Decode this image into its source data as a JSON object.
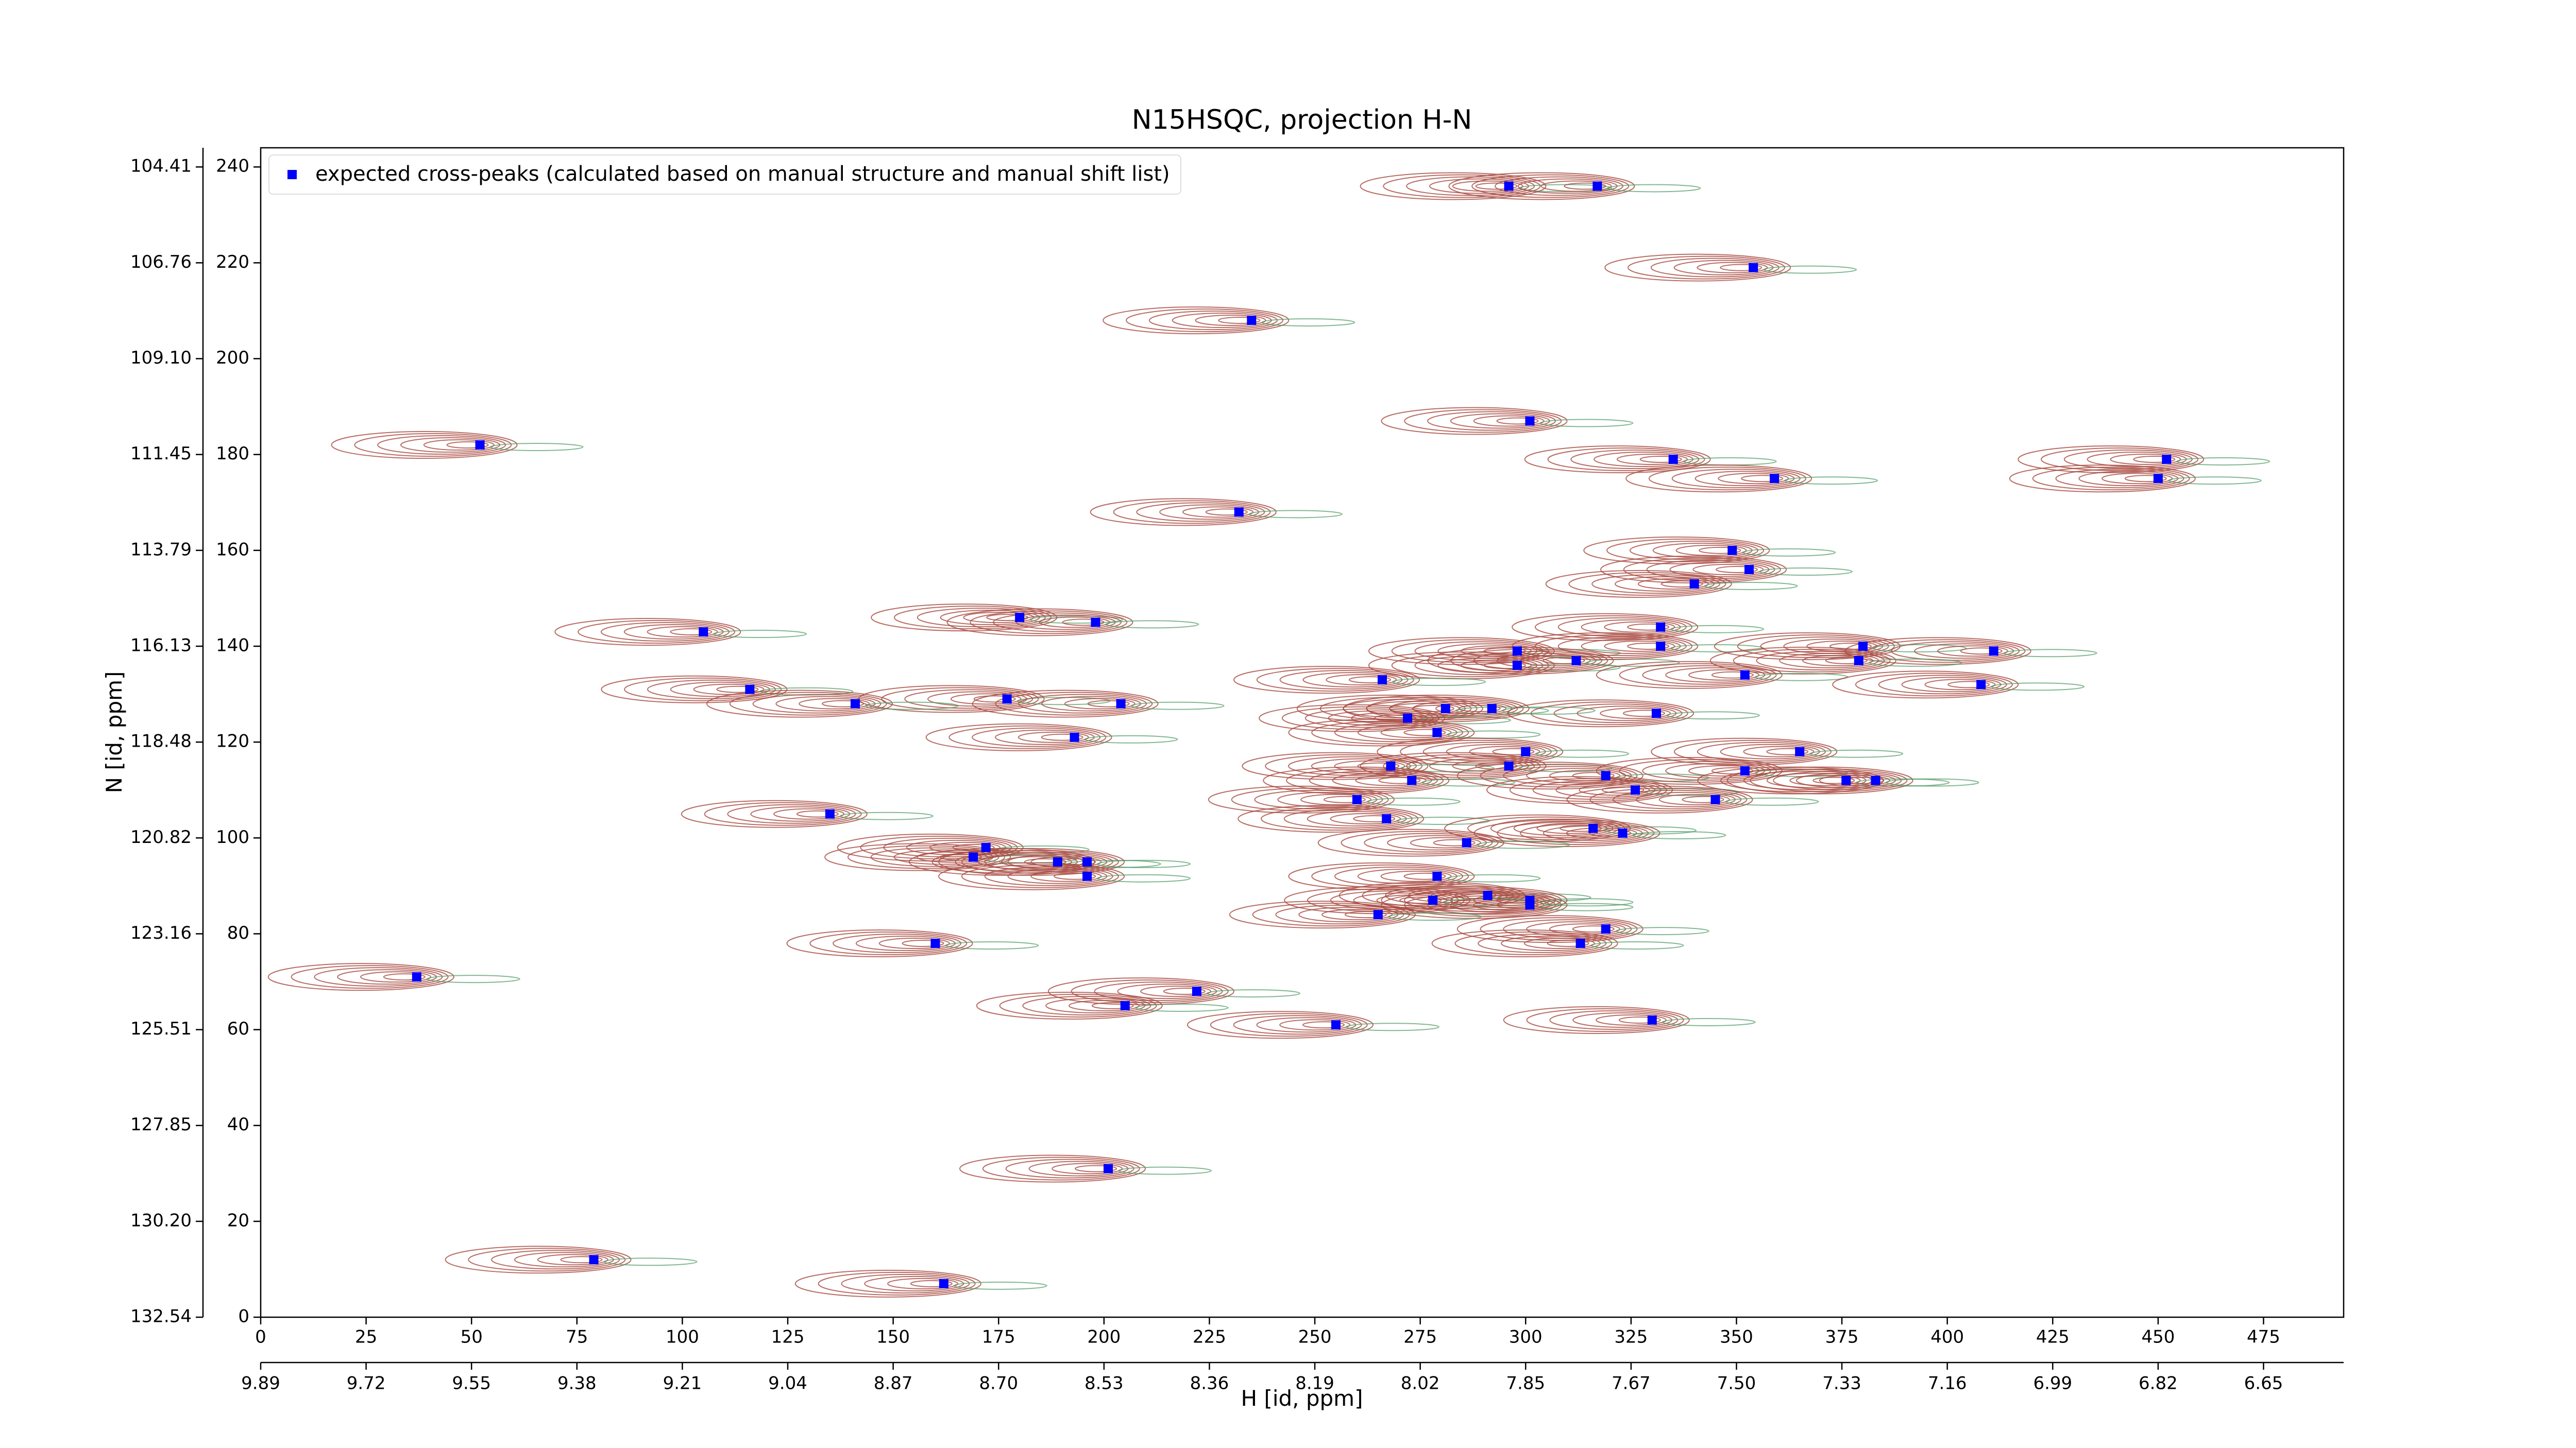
{
  "chart_data": {
    "type": "scatter",
    "title": "N15HSQC, projection H-N",
    "xlabel": "H [id, ppm]",
    "ylabel": "N [id, ppm]",
    "xlim": [
      0,
      494
    ],
    "ylim": [
      0,
      244
    ],
    "xticks": [
      0,
      25,
      50,
      75,
      100,
      125,
      150,
      175,
      200,
      225,
      250,
      275,
      300,
      325,
      350,
      375,
      400,
      425,
      450,
      475
    ],
    "yticks": [
      0,
      20,
      40,
      60,
      80,
      100,
      120,
      140,
      160,
      180,
      200,
      220,
      240
    ],
    "x2ticks": [
      {
        "value": 0,
        "label": "9.89"
      },
      {
        "value": 25,
        "label": "9.72"
      },
      {
        "value": 50,
        "label": "9.55"
      },
      {
        "value": 75,
        "label": "9.38"
      },
      {
        "value": 100,
        "label": "9.21"
      },
      {
        "value": 125,
        "label": "9.04"
      },
      {
        "value": 150,
        "label": "8.87"
      },
      {
        "value": 175,
        "label": "8.70"
      },
      {
        "value": 200,
        "label": "8.53"
      },
      {
        "value": 225,
        "label": "8.36"
      },
      {
        "value": 250,
        "label": "8.19"
      },
      {
        "value": 275,
        "label": "8.02"
      },
      {
        "value": 300,
        "label": "7.85"
      },
      {
        "value": 325,
        "label": "7.67"
      },
      {
        "value": 350,
        "label": "7.50"
      },
      {
        "value": 375,
        "label": "7.33"
      },
      {
        "value": 400,
        "label": "7.16"
      },
      {
        "value": 425,
        "label": "6.99"
      },
      {
        "value": 450,
        "label": "6.82"
      },
      {
        "value": 475,
        "label": "6.65"
      }
    ],
    "y2ticks": [
      {
        "value": 0,
        "label": "132.54"
      },
      {
        "value": 20,
        "label": "130.20"
      },
      {
        "value": 40,
        "label": "127.85"
      },
      {
        "value": 60,
        "label": "125.51"
      },
      {
        "value": 80,
        "label": "123.16"
      },
      {
        "value": 100,
        "label": "120.82"
      },
      {
        "value": 120,
        "label": "118.48"
      },
      {
        "value": 140,
        "label": "116.13"
      },
      {
        "value": 160,
        "label": "113.79"
      },
      {
        "value": 180,
        "label": "111.45"
      },
      {
        "value": 200,
        "label": "109.10"
      },
      {
        "value": 220,
        "label": "106.76"
      },
      {
        "value": 240,
        "label": "104.41"
      }
    ],
    "legend": "upper left",
    "series": [
      {
        "name": "expected cross-peaks (calculated based on manual structure and manual shift list)",
        "color": "#0000ff",
        "x": [
          296,
          317,
          354,
          235,
          301,
          52,
          335,
          359,
          452,
          450,
          232,
          349,
          353,
          340,
          180,
          198,
          105,
          332,
          298,
          298,
          312,
          332,
          380,
          411,
          379,
          352,
          266,
          408,
          116,
          177,
          141,
          204,
          281,
          272,
          292,
          331,
          279,
          193,
          300,
          365,
          268,
          296,
          273,
          319,
          352,
          376,
          383,
          326,
          345,
          260,
          135,
          267,
          316,
          323,
          286,
          172,
          169,
          189,
          196,
          196,
          279,
          291,
          278,
          301,
          301,
          265,
          319,
          313,
          160,
          37,
          222,
          205,
          330,
          255,
          201,
          79,
          162
        ],
        "values": [
          236,
          236,
          219,
          208,
          187,
          182,
          179,
          175,
          179,
          175,
          168,
          160,
          156,
          153,
          146,
          145,
          143,
          144,
          139,
          136,
          137,
          140,
          140,
          139,
          137,
          134,
          133,
          132,
          131,
          129,
          128,
          128,
          127,
          125,
          127,
          126,
          122,
          121,
          118,
          118,
          115,
          115,
          112,
          113,
          114,
          112,
          112,
          110,
          108,
          108,
          105,
          104,
          102,
          101,
          99,
          98,
          96,
          95,
          95,
          92,
          92,
          88,
          87,
          87,
          86,
          84,
          81,
          78,
          78,
          71,
          68,
          65,
          62,
          61,
          31,
          12,
          7
        ]
      }
    ]
  }
}
